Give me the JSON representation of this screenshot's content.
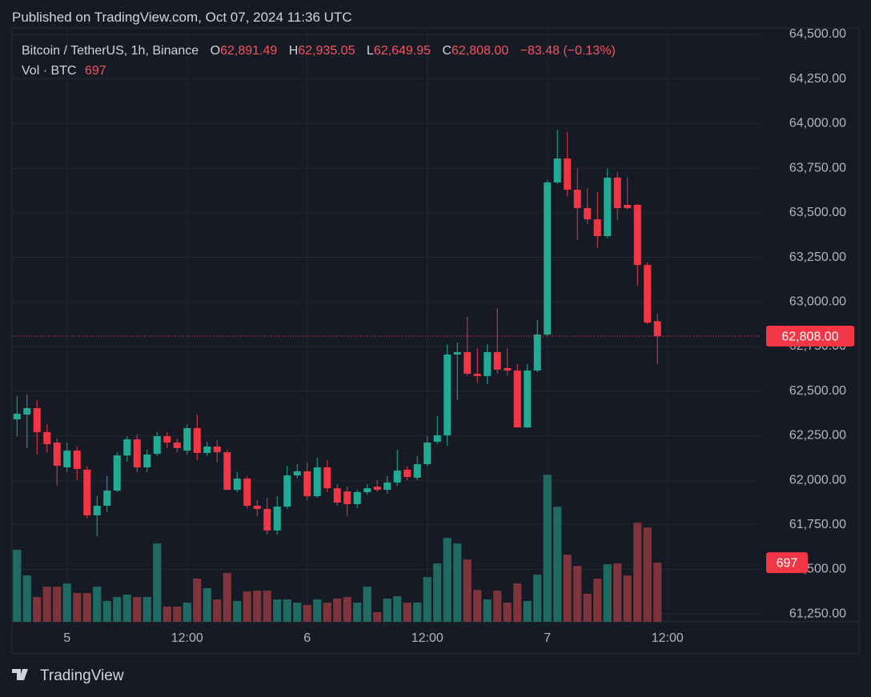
{
  "header": {
    "published": "Published on TradingView.com, Oct 07, 2024 11:36 UTC",
    "symbol": "Bitcoin / TetherUS, 1h, Binance",
    "ohlc": [
      {
        "key": "O",
        "value": "62,891.49"
      },
      {
        "key": "H",
        "value": "62,935.05"
      },
      {
        "key": "L",
        "value": "62,649.95"
      },
      {
        "key": "C",
        "value": "62,808.00"
      }
    ],
    "change": "−83.48 (−0.13%)",
    "volume_label": "Vol · BTC",
    "volume_value": "697"
  },
  "chart_data": {
    "type": "candlestick",
    "x": [
      -5,
      -4,
      -3,
      -2,
      -1,
      0,
      1,
      2,
      3,
      4,
      5,
      6,
      7,
      8,
      9,
      10,
      11,
      12,
      13,
      14,
      15,
      16,
      17,
      18,
      19,
      20,
      21,
      22,
      23,
      24,
      25,
      26,
      27,
      28,
      29,
      30,
      31,
      32,
      33,
      34,
      35,
      36,
      37,
      38,
      39,
      40,
      41,
      42,
      43,
      44,
      45,
      46,
      47,
      48,
      49,
      50,
      51,
      52,
      53,
      54,
      55,
      56,
      57,
      58,
      59
    ],
    "open": [
      62341,
      62368,
      62404,
      62270,
      62211,
      62072,
      62166,
      62059,
      61803,
      61857,
      61942,
      62139,
      62229,
      62072,
      62148,
      62247,
      62211,
      62166,
      62292,
      62153,
      62189,
      62157,
      61946,
      62009,
      61857,
      61839,
      61718,
      61852,
      62027,
      62050,
      61910,
      62072,
      61955,
      61937,
      61866,
      61933,
      61964,
      61946,
      61987,
      62059,
      62014,
      62090,
      62216,
      62252,
      62705,
      62718,
      62597,
      62584,
      62718,
      62629,
      62615,
      62296,
      62615,
      62817,
      63670,
      63804,
      63629,
      63526,
      63463,
      63369,
      63697,
      63544,
      63544,
      63207,
      62891.49
    ],
    "high": [
      62471,
      62480,
      62449,
      62314,
      62234,
      62211,
      62189,
      62077,
      61910,
      62023,
      62157,
      62247,
      62256,
      62171,
      62270,
      62270,
      62234,
      62314,
      62368,
      62216,
      62225,
      62171,
      62045,
      62023,
      61888,
      61901,
      61910,
      62081,
      62090,
      62099,
      62126,
      62113,
      61978,
      61964,
      61946,
      61978,
      62000,
      62023,
      62171,
      62077,
      62135,
      62247,
      62359,
      62763,
      62772,
      62916,
      62741,
      62763,
      62965,
      62741,
      62651,
      62651,
      62898,
      63683,
      63966,
      63952,
      63750,
      63638,
      63616,
      63750,
      63728,
      63697,
      63549,
      63221,
      62935.05
    ],
    "low": [
      62247,
      62180,
      62144,
      62157,
      61969,
      62045,
      62000,
      61785,
      61686,
      61821,
      61933,
      62104,
      62045,
      62045,
      62135,
      62180,
      62157,
      62144,
      62113,
      62135,
      62099,
      61946,
      61933,
      61843,
      61798,
      61695,
      61695,
      61839,
      62009,
      61888,
      61901,
      61933,
      61857,
      61798,
      61843,
      61919,
      61933,
      61924,
      61969,
      62000,
      62000,
      62077,
      62202,
      62193,
      62449,
      62584,
      62548,
      62539,
      62597,
      62584,
      62296,
      62292,
      62606,
      62808,
      63661,
      63593,
      63347,
      63436,
      63302,
      63356,
      63459,
      63517,
      63091,
      62875,
      62649.95
    ],
    "close": [
      62373,
      62404,
      62270,
      62202,
      62081,
      62166,
      62063,
      61803,
      61857,
      61942,
      62139,
      62229,
      62072,
      62144,
      62247,
      62211,
      62180,
      62292,
      62153,
      62189,
      62157,
      61946,
      62009,
      61857,
      61839,
      61718,
      61852,
      62027,
      62050,
      61910,
      62072,
      61955,
      61875,
      61866,
      61933,
      61955,
      61946,
      61987,
      62054,
      62018,
      62090,
      62211,
      62252,
      62705,
      62718,
      62597,
      62584,
      62718,
      62620,
      62615,
      62296,
      62615,
      62817,
      63670,
      63804,
      63629,
      63526,
      63463,
      63369,
      63697,
      63526,
      63526,
      63207,
      62884,
      62808
    ],
    "volume": [
      848,
      546,
      292,
      414,
      414,
      452,
      339,
      339,
      414,
      245,
      292,
      320,
      292,
      292,
      923,
      179,
      179,
      226,
      509,
      396,
      264,
      575,
      245,
      358,
      367,
      367,
      264,
      264,
      226,
      198,
      264,
      226,
      273,
      292,
      226,
      414,
      113,
      273,
      301,
      226,
      226,
      528,
      688,
      989,
      923,
      735,
      377,
      264,
      367,
      226,
      452,
      245,
      556,
      1733,
      1356,
      791,
      659,
      330,
      509,
      678,
      688,
      546,
      1168,
      1112,
      697
    ],
    "xlim": [
      -5.5,
      69.3
    ],
    "xticks": [
      {
        "value": 0,
        "label": "5"
      },
      {
        "value": 12,
        "label": "12:00"
      },
      {
        "value": 24,
        "label": "6"
      },
      {
        "value": 36,
        "label": "12:00"
      },
      {
        "value": 48,
        "label": "7"
      },
      {
        "value": 60,
        "label": "12:00"
      }
    ],
    "ylim": [
      61206,
      64536
    ],
    "yticks": [
      {
        "value": 64500,
        "label": "64,500.00"
      },
      {
        "value": 64250,
        "label": "64,250.00"
      },
      {
        "value": 64000,
        "label": "64,000.00"
      },
      {
        "value": 63750,
        "label": "63,750.00"
      },
      {
        "value": 63500,
        "label": "63,500.00"
      },
      {
        "value": 63250,
        "label": "63,250.00"
      },
      {
        "value": 63000,
        "label": "63,000.00"
      },
      {
        "value": 62750,
        "label": "62,750.00"
      },
      {
        "value": 62500,
        "label": "62,500.00"
      },
      {
        "value": 62250,
        "label": "62,250.00"
      },
      {
        "value": 62000,
        "label": "62,000.00"
      },
      {
        "value": 61750,
        "label": "61,750.00"
      },
      {
        "value": 61500,
        "label": "61,500.00"
      },
      {
        "value": 61250,
        "label": "61,250.00"
      }
    ],
    "volume_lim": [
      0,
      7000
    ],
    "last_price": {
      "value": 62808,
      "label": "62,808.00"
    },
    "last_volume": 697,
    "grid": true,
    "colors": {
      "up": "#22ab94",
      "down": "#f23645",
      "volume_up": "#1f6a63",
      "volume_down": "#7e343b",
      "badge": "#f23645"
    }
  },
  "footer": {
    "brand": "TradingView"
  }
}
